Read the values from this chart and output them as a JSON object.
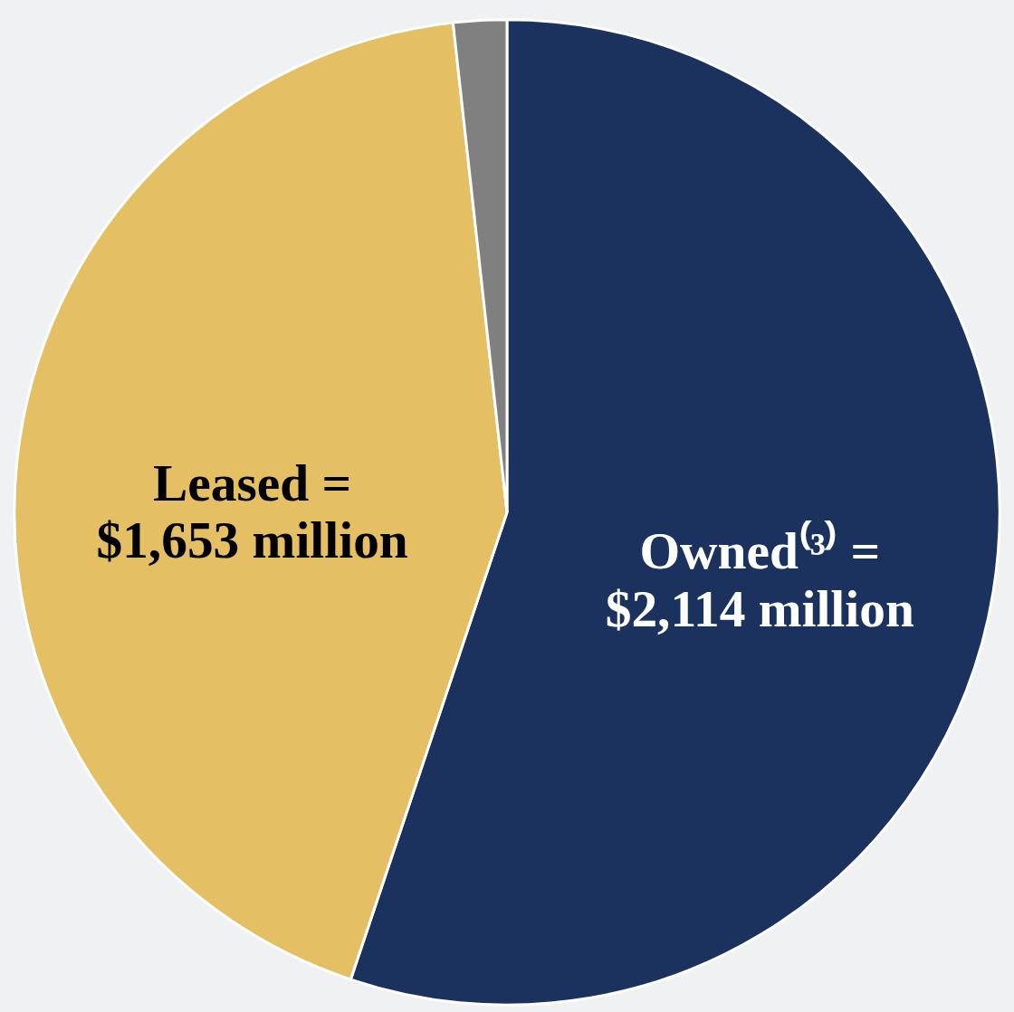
{
  "chart_data": {
    "type": "pie",
    "categories": [
      "Owned⁽³⁾ =",
      "Leased =",
      null
    ],
    "values": [
      2114,
      1653,
      67
    ],
    "colors": [
      "#1b315e",
      "#e5bf63",
      "#808080"
    ],
    "value_labels": [
      "$2,114 million",
      "$1,653 million",
      null
    ],
    "legend": false
  }
}
